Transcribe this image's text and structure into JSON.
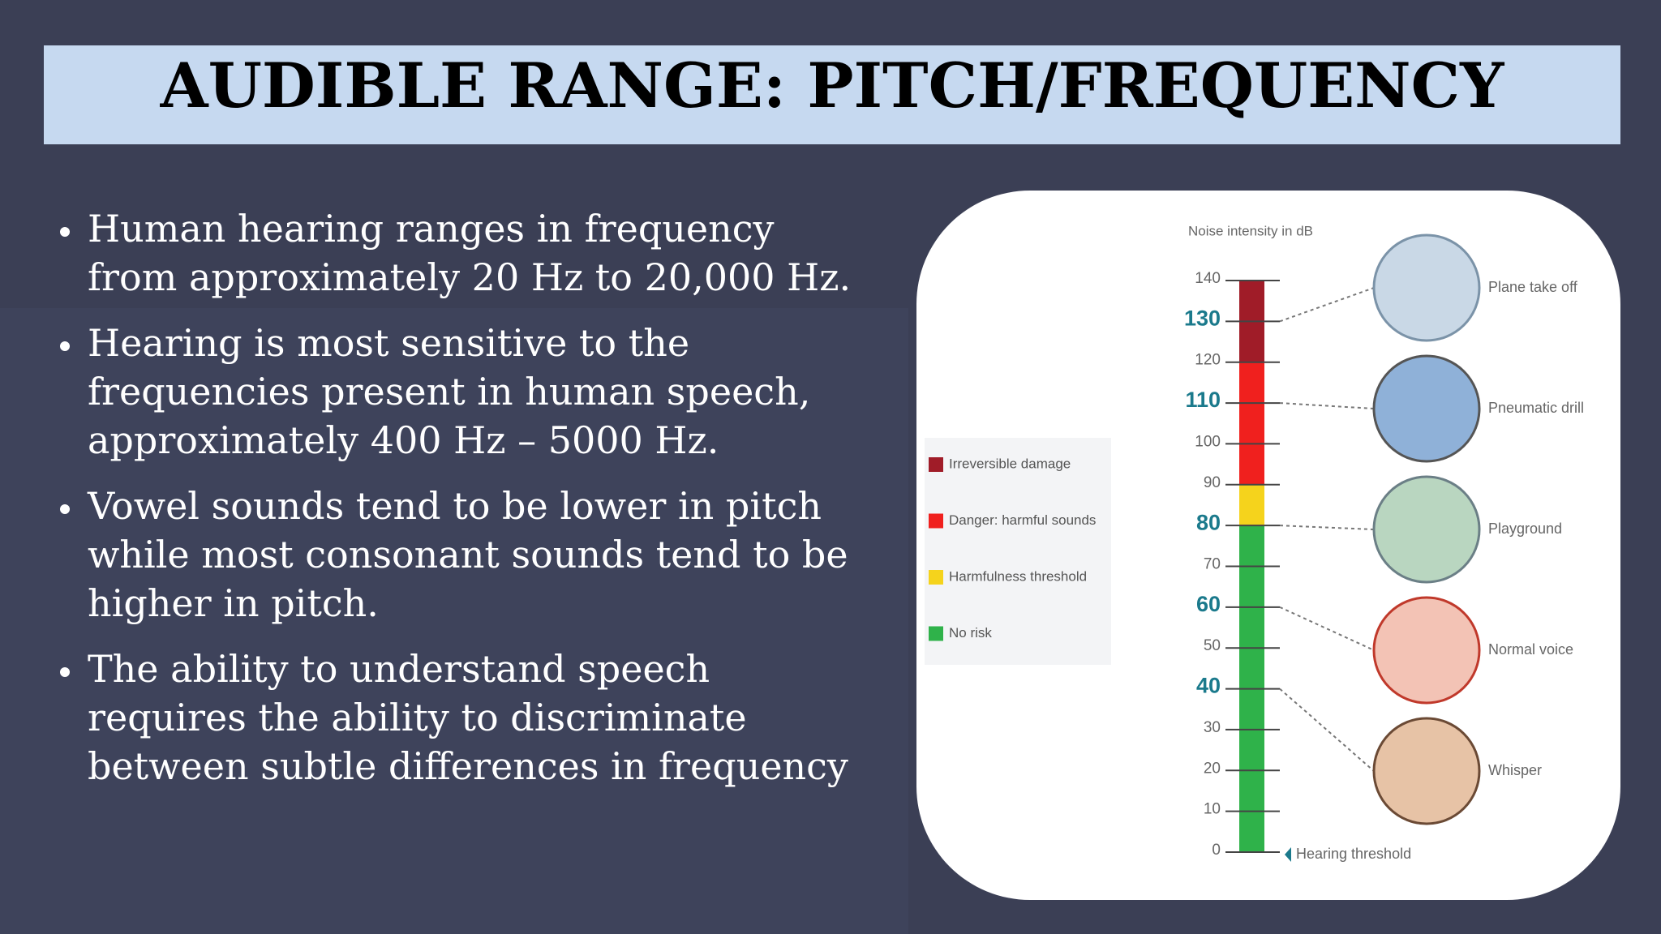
{
  "header": {
    "title": "AUDIBLE RANGE: PITCH/FREQUENCY"
  },
  "bullets": [
    [
      "Human hearing ranges in frequency",
      "from approximately 20 Hz to 20,000 Hz."
    ],
    [
      "Hearing is most sensitive to the",
      "frequencies present in  human speech,",
      "approximately 400 Hz – 5000 Hz."
    ],
    [
      "Vowel sounds tend to be lower in pitch",
      "while most consonant sounds tend to be",
      "higher in pitch."
    ],
    [
      "The ability to understand speech",
      "requires the ability to discriminate",
      "between subtle differences in frequency"
    ]
  ],
  "chart_data": {
    "type": "scale",
    "y_label": "Noise intensity in dB",
    "ylim": [
      0,
      140
    ],
    "yticks": [
      0,
      10,
      20,
      30,
      40,
      50,
      60,
      70,
      80,
      90,
      100,
      110,
      120,
      130,
      140
    ],
    "bands": [
      {
        "name": "Irreversible damage",
        "color": "#a01c28",
        "range": [
          120,
          140
        ]
      },
      {
        "name": "Danger: harmful sounds",
        "color": "#f0201e",
        "range": [
          90,
          120
        ]
      },
      {
        "name": "Harmfulness threshold",
        "color": "#f5d31c",
        "range": [
          80,
          90
        ]
      },
      {
        "name": "No risk",
        "color": "#2fb24a",
        "range": [
          0,
          80
        ]
      }
    ],
    "examples": [
      {
        "label": "Plane take off",
        "value": 130
      },
      {
        "label": "Pneumatic drill",
        "value": 110
      },
      {
        "label": "Playground",
        "value": 80
      },
      {
        "label": "Normal voice",
        "value": 60
      },
      {
        "label": "Whisper",
        "value": 40
      }
    ],
    "annotation": "Hearing threshold"
  }
}
